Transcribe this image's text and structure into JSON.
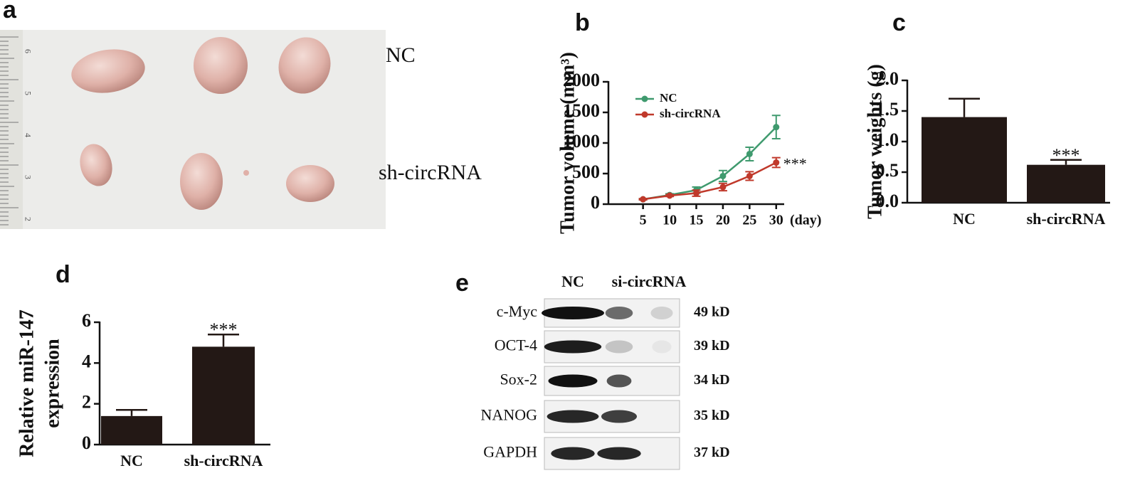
{
  "figure": {
    "a": {
      "label": "a",
      "ruler": [
        "6",
        "5",
        "4",
        "3",
        "2"
      ],
      "rows": [
        "NC",
        "sh-circRNA"
      ]
    },
    "b": {
      "label": "b"
    },
    "c": {
      "label": "c"
    },
    "d": {
      "label": "d"
    },
    "e": {
      "label": "e",
      "columns": [
        "NC",
        "si-circRNA"
      ],
      "proteins": [
        {
          "name": "c-Myc",
          "size": "49 kD"
        },
        {
          "name": "OCT-4",
          "size": "39 kD"
        },
        {
          "name": "Sox-2",
          "size": "34 kD"
        },
        {
          "name": "NANOG",
          "size": "35 kD"
        },
        {
          "name": "GAPDH",
          "size": "37 kD"
        }
      ]
    }
  },
  "chart_data": [
    {
      "type": "line",
      "ylabel": [
        "Tumor volume (mm³)"
      ],
      "xlabel": "(day)",
      "x": [
        5,
        10,
        15,
        20,
        25,
        30
      ],
      "xlim": [
        -1.5,
        31.5
      ],
      "xticks": [
        5,
        10,
        15,
        20,
        25,
        30
      ],
      "ylim": [
        0,
        2000
      ],
      "yticks": [
        0,
        500,
        1000,
        1500,
        2000
      ],
      "series": [
        {
          "name": "NC",
          "color": "#3f9a6e",
          "values": [
            80,
            150,
            230,
            460,
            820,
            1260
          ],
          "errors": [
            10,
            20,
            50,
            90,
            110,
            190
          ]
        },
        {
          "name": "sh-circRNA",
          "color": "#c0392b",
          "values": [
            80,
            140,
            180,
            280,
            460,
            680
          ],
          "errors": [
            10,
            15,
            50,
            60,
            70,
            80
          ]
        }
      ],
      "annotation": "***",
      "legend": "upper left"
    },
    {
      "type": "bar",
      "ylabel": [
        "Tumor weights (g)"
      ],
      "categories": [
        "NC",
        "sh-circRNA"
      ],
      "values": [
        1.4,
        0.62
      ],
      "errors": [
        0.3,
        0.08
      ],
      "color": "#231815",
      "ylim": [
        0,
        2.0
      ],
      "yticks": [
        {
          "value": 0,
          "label": "0.0"
        },
        {
          "value": 0.5,
          "label": "0.5"
        },
        {
          "value": 1,
          "label": "1.0"
        },
        {
          "value": 1.5,
          "label": "1.5"
        },
        {
          "value": 2,
          "label": "2.0"
        }
      ],
      "annotation": "***"
    },
    {
      "type": "bar",
      "ylabel": [
        "Relative miR-147",
        "expression"
      ],
      "categories": [
        "NC",
        "sh-circRNA"
      ],
      "values": [
        1.4,
        4.8
      ],
      "errors": [
        0.3,
        0.6
      ],
      "color": "#231815",
      "ylim": [
        0,
        6
      ],
      "yticks": [
        0,
        2,
        4,
        6
      ],
      "annotation": "***"
    }
  ]
}
